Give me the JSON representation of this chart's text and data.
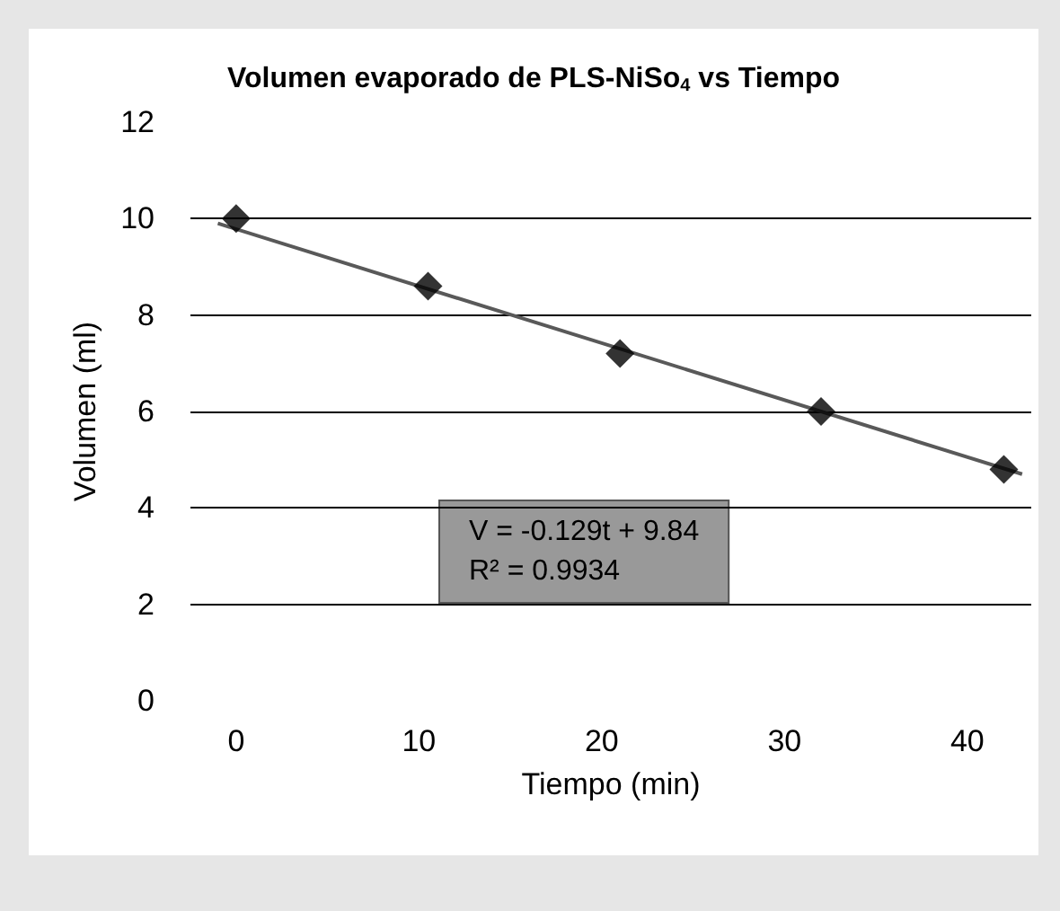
{
  "chart_data": {
    "type": "scatter",
    "title": "Volumen evaporado de PLS-NiSo$_{4}$ vs Tiempo",
    "xlabel": "Tiempo (min)",
    "ylabel": "Volumen (ml)",
    "annotations": [
      "V = -0.129t + 9.84",
      "R² = 0.9934"
    ],
    "series": [
      {
        "color": "#000000",
        "marker": "diamond",
        "x": [
          0,
          10.5,
          21,
          32,
          42
        ],
        "values": [
          10.0,
          8.6,
          7.2,
          6.0,
          4.8
        ]
      },
      {
        "type": "line",
        "color": "#595959",
        "marker": "none",
        "x": [
          -1,
          43
        ],
        "values": [
          9.9,
          4.7
        ]
      }
    ],
    "xlim": [
      -2.5,
      43.5
    ],
    "xticks": [
      0,
      10,
      20,
      30,
      40
    ],
    "ylim": [
      0,
      12
    ],
    "yticks": [
      0,
      2,
      4,
      6,
      8,
      10,
      12
    ],
    "grid": "y"
  }
}
